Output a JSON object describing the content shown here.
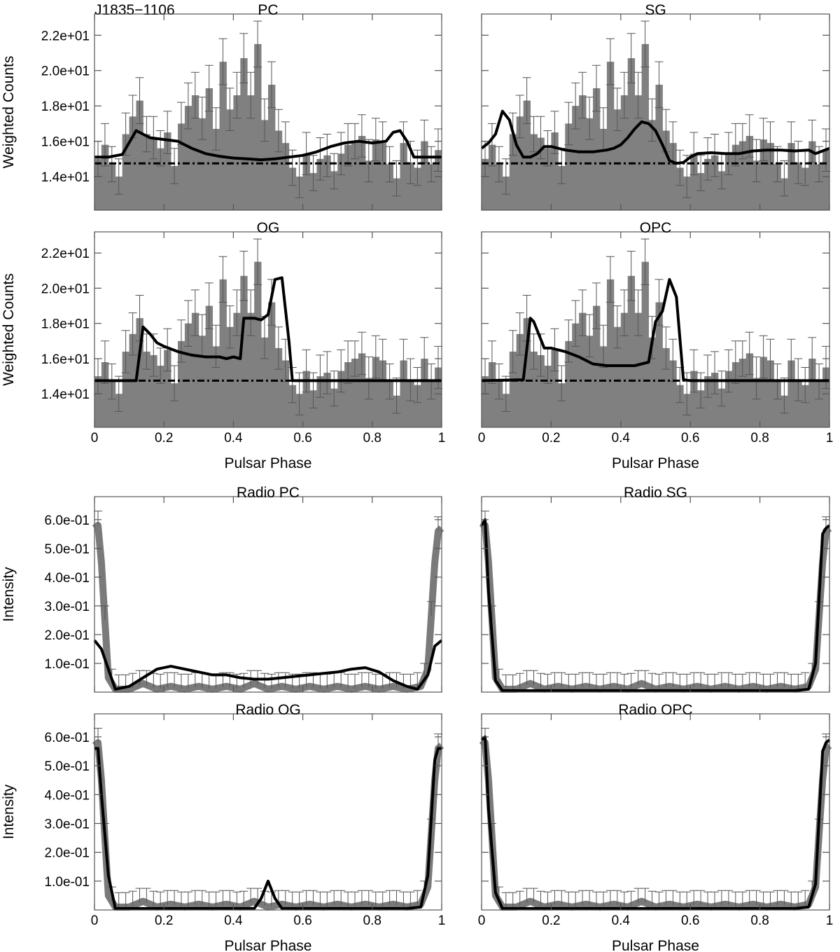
{
  "figure_label": "J1835−1106",
  "chart_data": [
    {
      "type": "bar",
      "panel": "gamma",
      "title": "PC",
      "ylabel": "Weighted Counts",
      "xlabel": "",
      "xlim": [
        0,
        1
      ],
      "ylim": [
        12.1,
        23.2
      ],
      "y_ticks": [
        14,
        16,
        18,
        20,
        22
      ],
      "y_tick_labels": [
        "1.4e+01",
        "1.6e+01",
        "1.8e+01",
        "2.0e+01",
        "2.2e+01"
      ],
      "x_ticks": [
        0,
        0.2,
        0.4,
        0.6,
        0.8,
        1
      ],
      "x_tick_labels": [],
      "background_level": 14.75,
      "observed_counts": [
        15.0,
        15.8,
        14.7,
        14.0,
        16.4,
        17.4,
        18.3,
        16.4,
        16.2,
        15.6,
        16.5,
        14.6,
        17.0,
        18.0,
        18.6,
        17.3,
        19.0,
        16.7,
        20.5,
        17.8,
        18.6,
        20.7,
        18.6,
        21.5,
        17.2,
        19.2,
        16.6,
        15.9,
        14.5,
        14.0,
        15.3,
        14.2,
        15.0,
        15.2,
        14.3,
        15.3,
        15.8,
        16.0,
        16.3,
        14.9,
        16.1,
        15.9,
        14.7,
        13.9,
        15.9,
        14.8,
        14.5,
        16.0,
        14.7,
        15.5
      ],
      "error": [
        1.0,
        1.2,
        1.0,
        1.0,
        1.2,
        1.2,
        1.3,
        1.0,
        1.2,
        1.0,
        1.2,
        1.0,
        1.2,
        1.3,
        1.3,
        1.2,
        1.3,
        1.2,
        1.3,
        1.2,
        1.3,
        1.4,
        1.3,
        1.3,
        1.2,
        1.3,
        1.2,
        1.2,
        1.0,
        1.2,
        1.2,
        1.0,
        1.2,
        1.2,
        1.0,
        1.2,
        1.2,
        1.0,
        1.2,
        1.2,
        1.2,
        1.2,
        1.0,
        1.0,
        1.2,
        1.2,
        1.0,
        1.2,
        1.0,
        1.2
      ],
      "model_x": [
        0,
        0.04,
        0.08,
        0.12,
        0.16,
        0.2,
        0.24,
        0.28,
        0.32,
        0.36,
        0.4,
        0.44,
        0.48,
        0.52,
        0.56,
        0.6,
        0.64,
        0.68,
        0.72,
        0.76,
        0.8,
        0.84,
        0.86,
        0.88,
        0.9,
        0.92,
        0.96,
        1.0
      ],
      "model_y": [
        15.1,
        15.1,
        15.25,
        16.6,
        16.2,
        16.1,
        16.0,
        15.6,
        15.3,
        15.15,
        15.05,
        15.0,
        14.95,
        15.0,
        15.1,
        15.2,
        15.4,
        15.7,
        15.9,
        16.0,
        15.9,
        16.0,
        16.5,
        16.6,
        16.0,
        15.1,
        15.1,
        15.1
      ]
    },
    {
      "type": "bar",
      "panel": "gamma",
      "title": "SG",
      "ylabel": "",
      "xlabel": "",
      "xlim": [
        0,
        1
      ],
      "ylim": [
        12.1,
        23.2
      ],
      "y_ticks": [
        14,
        16,
        18,
        20,
        22
      ],
      "y_tick_labels": [],
      "x_ticks": [
        0,
        0.2,
        0.4,
        0.6,
        0.8,
        1
      ],
      "x_tick_labels": [],
      "background_level": 14.75,
      "observed_counts": [
        15.0,
        15.8,
        14.7,
        14.0,
        16.4,
        17.4,
        18.3,
        16.4,
        16.2,
        15.6,
        16.5,
        14.6,
        17.0,
        18.0,
        18.6,
        17.3,
        19.0,
        16.7,
        20.5,
        17.8,
        18.6,
        20.7,
        18.6,
        21.5,
        17.2,
        19.2,
        16.6,
        15.9,
        14.5,
        14.0,
        15.3,
        14.2,
        15.0,
        15.2,
        14.3,
        15.3,
        15.8,
        16.0,
        16.3,
        14.9,
        16.1,
        15.9,
        14.7,
        13.9,
        15.9,
        14.8,
        14.5,
        16.0,
        14.7,
        15.5
      ],
      "error": [
        1.0,
        1.2,
        1.0,
        1.0,
        1.2,
        1.2,
        1.3,
        1.0,
        1.2,
        1.0,
        1.2,
        1.0,
        1.2,
        1.3,
        1.3,
        1.2,
        1.3,
        1.2,
        1.3,
        1.2,
        1.3,
        1.4,
        1.3,
        1.3,
        1.2,
        1.3,
        1.2,
        1.2,
        1.0,
        1.2,
        1.2,
        1.0,
        1.2,
        1.2,
        1.0,
        1.2,
        1.2,
        1.0,
        1.2,
        1.2,
        1.2,
        1.2,
        1.0,
        1.0,
        1.2,
        1.2,
        1.0,
        1.2,
        1.0,
        1.2
      ],
      "model_x": [
        0,
        0.02,
        0.04,
        0.06,
        0.08,
        0.1,
        0.12,
        0.14,
        0.16,
        0.18,
        0.2,
        0.24,
        0.28,
        0.32,
        0.36,
        0.38,
        0.4,
        0.42,
        0.44,
        0.46,
        0.48,
        0.5,
        0.52,
        0.54,
        0.56,
        0.58,
        0.6,
        0.62,
        0.66,
        0.7,
        0.74,
        0.78,
        0.82,
        0.86,
        0.9,
        0.94,
        0.96,
        1.0
      ],
      "model_y": [
        15.6,
        15.9,
        16.4,
        17.7,
        17.2,
        15.8,
        15.1,
        15.1,
        15.3,
        15.7,
        15.7,
        15.5,
        15.4,
        15.4,
        15.5,
        15.6,
        15.8,
        16.2,
        16.7,
        17.1,
        17.0,
        16.6,
        15.8,
        14.9,
        14.75,
        14.8,
        15.1,
        15.3,
        15.35,
        15.3,
        15.3,
        15.45,
        15.5,
        15.5,
        15.45,
        15.5,
        15.3,
        15.6
      ]
    },
    {
      "type": "bar",
      "panel": "gamma",
      "title": "OG",
      "ylabel": "Weighted Counts",
      "xlabel": "Pulsar Phase",
      "xlim": [
        0,
        1
      ],
      "ylim": [
        12.1,
        23.2
      ],
      "y_ticks": [
        14,
        16,
        18,
        20,
        22
      ],
      "y_tick_labels": [
        "1.4e+01",
        "1.6e+01",
        "1.8e+01",
        "2.0e+01",
        "2.2e+01"
      ],
      "x_ticks": [
        0,
        0.2,
        0.4,
        0.6,
        0.8,
        1
      ],
      "x_tick_labels": [
        "0",
        "0.2",
        "0.4",
        "0.6",
        "0.8",
        "1"
      ],
      "background_level": 14.75,
      "observed_counts": [
        15.0,
        15.8,
        14.7,
        14.0,
        16.4,
        17.4,
        18.3,
        16.4,
        16.2,
        15.6,
        16.5,
        14.6,
        17.0,
        18.0,
        18.6,
        17.3,
        19.0,
        16.7,
        20.5,
        17.8,
        18.6,
        20.7,
        18.6,
        21.5,
        17.2,
        19.2,
        16.6,
        15.9,
        14.5,
        14.0,
        15.3,
        14.2,
        15.0,
        15.2,
        14.3,
        15.3,
        15.8,
        16.0,
        16.3,
        14.9,
        16.1,
        15.9,
        14.7,
        13.9,
        15.9,
        14.8,
        14.5,
        16.0,
        14.7,
        15.5
      ],
      "error": [
        1.0,
        1.2,
        1.0,
        1.0,
        1.2,
        1.2,
        1.3,
        1.0,
        1.2,
        1.0,
        1.2,
        1.0,
        1.2,
        1.3,
        1.3,
        1.2,
        1.3,
        1.2,
        1.3,
        1.2,
        1.3,
        1.4,
        1.3,
        1.3,
        1.2,
        1.3,
        1.2,
        1.2,
        1.0,
        1.2,
        1.2,
        1.0,
        1.2,
        1.2,
        1.0,
        1.2,
        1.2,
        1.0,
        1.2,
        1.2,
        1.2,
        1.2,
        1.0,
        1.0,
        1.2,
        1.2,
        1.0,
        1.2,
        1.0,
        1.2
      ],
      "model_x": [
        0,
        0.12,
        0.14,
        0.16,
        0.18,
        0.2,
        0.24,
        0.28,
        0.32,
        0.36,
        0.38,
        0.4,
        0.42,
        0.43,
        0.46,
        0.48,
        0.5,
        0.52,
        0.54,
        0.56,
        0.57,
        0.6,
        1.0
      ],
      "model_y": [
        14.75,
        14.75,
        17.8,
        17.4,
        16.9,
        16.7,
        16.4,
        16.2,
        16.1,
        16.1,
        16.0,
        16.1,
        16.0,
        18.3,
        18.3,
        18.2,
        18.5,
        20.5,
        20.6,
        17.0,
        14.75,
        14.75,
        14.75
      ]
    },
    {
      "type": "bar",
      "panel": "gamma",
      "title": "OPC",
      "ylabel": "",
      "xlabel": "Pulsar Phase",
      "xlim": [
        0,
        1
      ],
      "ylim": [
        12.1,
        23.2
      ],
      "y_ticks": [
        14,
        16,
        18,
        20,
        22
      ],
      "y_tick_labels": [],
      "x_ticks": [
        0,
        0.2,
        0.4,
        0.6,
        0.8,
        1
      ],
      "x_tick_labels": [
        "0",
        "0.2",
        "0.4",
        "0.6",
        "0.8",
        "1"
      ],
      "background_level": 14.75,
      "observed_counts": [
        15.0,
        15.8,
        14.7,
        14.0,
        16.4,
        17.4,
        18.3,
        16.4,
        16.2,
        15.6,
        16.5,
        14.6,
        17.0,
        18.0,
        18.6,
        17.3,
        19.0,
        16.7,
        20.5,
        17.8,
        18.6,
        20.7,
        18.6,
        21.5,
        17.2,
        19.2,
        16.6,
        15.9,
        14.5,
        14.0,
        15.3,
        14.2,
        15.0,
        15.2,
        14.3,
        15.3,
        15.8,
        16.0,
        16.3,
        14.9,
        16.1,
        15.9,
        14.7,
        13.9,
        15.9,
        14.8,
        14.5,
        16.0,
        14.7,
        15.5
      ],
      "error": [
        1.0,
        1.2,
        1.0,
        1.0,
        1.2,
        1.2,
        1.3,
        1.0,
        1.2,
        1.0,
        1.2,
        1.0,
        1.2,
        1.3,
        1.3,
        1.2,
        1.3,
        1.2,
        1.3,
        1.2,
        1.3,
        1.4,
        1.3,
        1.3,
        1.2,
        1.3,
        1.2,
        1.2,
        1.0,
        1.2,
        1.2,
        1.0,
        1.2,
        1.2,
        1.0,
        1.2,
        1.2,
        1.0,
        1.2,
        1.2,
        1.2,
        1.2,
        1.0,
        1.0,
        1.2,
        1.2,
        1.0,
        1.2,
        1.0,
        1.2
      ],
      "model_x": [
        0,
        0.12,
        0.14,
        0.15,
        0.18,
        0.2,
        0.24,
        0.28,
        0.32,
        0.36,
        0.4,
        0.44,
        0.48,
        0.5,
        0.52,
        0.54,
        0.56,
        0.58,
        0.6,
        1.0
      ],
      "model_y": [
        14.75,
        14.8,
        18.3,
        18.1,
        16.6,
        16.6,
        16.4,
        16.1,
        15.7,
        15.6,
        15.6,
        15.6,
        15.8,
        18.1,
        18.7,
        20.5,
        19.5,
        14.8,
        14.75,
        14.75
      ]
    },
    {
      "type": "line",
      "panel": "radio",
      "title": "Radio PC",
      "ylabel": "Intensity",
      "xlabel": "",
      "xlim": [
        0,
        1
      ],
      "ylim": [
        0,
        0.68
      ],
      "y_ticks": [
        0.1,
        0.2,
        0.3,
        0.4,
        0.5,
        0.6
      ],
      "y_tick_labels": [
        "1.0e-01",
        "2.0e-01",
        "3.0e-01",
        "4.0e-01",
        "5.0e-01",
        "6.0e-01"
      ],
      "x_ticks": [
        0,
        0.2,
        0.4,
        0.6,
        0.8,
        1
      ],
      "x_tick_labels": [],
      "radio_x": [
        0,
        0.01,
        0.02,
        0.04,
        0.06,
        0.1,
        0.14,
        0.18,
        0.22,
        0.26,
        0.3,
        0.34,
        0.38,
        0.42,
        0.46,
        0.5,
        0.54,
        0.58,
        0.62,
        0.66,
        0.7,
        0.74,
        0.78,
        0.82,
        0.86,
        0.9,
        0.94,
        0.96,
        0.98,
        0.99,
        1.0
      ],
      "radio_y": [
        0.57,
        0.58,
        0.45,
        0.05,
        0.01,
        0.01,
        0.03,
        0.01,
        0.02,
        0.01,
        0.02,
        0.01,
        0.02,
        0.01,
        0.03,
        0.01,
        0.02,
        0.01,
        0.02,
        0.01,
        0.02,
        0.01,
        0.02,
        0.01,
        0.02,
        0.01,
        0.02,
        0.08,
        0.45,
        0.56,
        0.57
      ],
      "error": 0.05,
      "model_x": [
        0,
        0.02,
        0.04,
        0.06,
        0.1,
        0.14,
        0.18,
        0.22,
        0.26,
        0.3,
        0.34,
        0.38,
        0.42,
        0.46,
        0.5,
        0.54,
        0.58,
        0.62,
        0.66,
        0.7,
        0.74,
        0.78,
        0.82,
        0.86,
        0.9,
        0.93,
        0.96,
        0.98,
        1.0
      ],
      "model_y": [
        0.18,
        0.15,
        0.08,
        0.01,
        0.02,
        0.05,
        0.08,
        0.09,
        0.08,
        0.07,
        0.06,
        0.06,
        0.05,
        0.045,
        0.045,
        0.05,
        0.055,
        0.06,
        0.065,
        0.07,
        0.08,
        0.085,
        0.07,
        0.04,
        0.02,
        0.01,
        0.06,
        0.16,
        0.18
      ]
    },
    {
      "type": "line",
      "panel": "radio",
      "title": "Radio SG",
      "ylabel": "",
      "xlabel": "",
      "xlim": [
        0,
        1
      ],
      "ylim": [
        0,
        0.68
      ],
      "y_ticks": [
        0.1,
        0.2,
        0.3,
        0.4,
        0.5,
        0.6
      ],
      "y_tick_labels": [],
      "x_ticks": [
        0,
        0.2,
        0.4,
        0.6,
        0.8,
        1
      ],
      "x_tick_labels": [],
      "radio_x": [
        0,
        0.01,
        0.02,
        0.04,
        0.06,
        0.1,
        0.14,
        0.18,
        0.22,
        0.26,
        0.3,
        0.34,
        0.38,
        0.42,
        0.46,
        0.5,
        0.54,
        0.58,
        0.62,
        0.66,
        0.7,
        0.74,
        0.78,
        0.82,
        0.86,
        0.9,
        0.94,
        0.96,
        0.98,
        0.99,
        1.0
      ],
      "radio_y": [
        0.57,
        0.58,
        0.45,
        0.05,
        0.01,
        0.01,
        0.03,
        0.01,
        0.02,
        0.01,
        0.02,
        0.01,
        0.02,
        0.01,
        0.03,
        0.01,
        0.02,
        0.01,
        0.02,
        0.01,
        0.02,
        0.01,
        0.02,
        0.01,
        0.02,
        0.01,
        0.02,
        0.08,
        0.45,
        0.56,
        0.57
      ],
      "error": 0.05,
      "model_x": [
        0,
        0.01,
        0.02,
        0.04,
        0.06,
        0.1,
        0.5,
        0.9,
        0.94,
        0.96,
        0.98,
        0.99,
        1.0
      ],
      "model_y": [
        0.58,
        0.6,
        0.35,
        0.04,
        0.005,
        0.005,
        0.005,
        0.005,
        0.01,
        0.1,
        0.55,
        0.57,
        0.58
      ]
    },
    {
      "type": "line",
      "panel": "radio",
      "title": "Radio OG",
      "ylabel": "Intensity",
      "xlabel": "Pulsar Phase",
      "xlim": [
        0,
        1
      ],
      "ylim": [
        0,
        0.68
      ],
      "y_ticks": [
        0.1,
        0.2,
        0.3,
        0.4,
        0.5,
        0.6
      ],
      "y_tick_labels": [
        "1.0e-01",
        "2.0e-01",
        "3.0e-01",
        "4.0e-01",
        "5.0e-01",
        "6.0e-01"
      ],
      "x_ticks": [
        0,
        0.2,
        0.4,
        0.6,
        0.8,
        1
      ],
      "x_tick_labels": [
        "0",
        "0.2",
        "0.4",
        "0.6",
        "0.8",
        "1"
      ],
      "radio_x": [
        0,
        0.01,
        0.02,
        0.04,
        0.06,
        0.1,
        0.14,
        0.18,
        0.22,
        0.26,
        0.3,
        0.34,
        0.38,
        0.42,
        0.46,
        0.5,
        0.54,
        0.58,
        0.62,
        0.66,
        0.7,
        0.74,
        0.78,
        0.82,
        0.86,
        0.9,
        0.94,
        0.96,
        0.98,
        0.99,
        1.0
      ],
      "radio_y": [
        0.57,
        0.58,
        0.45,
        0.05,
        0.01,
        0.01,
        0.03,
        0.01,
        0.02,
        0.01,
        0.02,
        0.01,
        0.02,
        0.01,
        0.03,
        0.01,
        0.02,
        0.01,
        0.02,
        0.01,
        0.02,
        0.01,
        0.02,
        0.01,
        0.02,
        0.01,
        0.02,
        0.08,
        0.45,
        0.56,
        0.57
      ],
      "error": 0.05,
      "model_x": [
        0,
        0.01,
        0.02,
        0.04,
        0.06,
        0.1,
        0.46,
        0.48,
        0.5,
        0.52,
        0.54,
        0.56,
        0.9,
        0.94,
        0.96,
        0.98,
        0.99,
        1.0
      ],
      "model_y": [
        0.56,
        0.56,
        0.4,
        0.12,
        0.005,
        0.005,
        0.005,
        0.04,
        0.1,
        0.04,
        0.005,
        0.005,
        0.005,
        0.01,
        0.12,
        0.52,
        0.56,
        0.56
      ]
    },
    {
      "type": "line",
      "panel": "radio",
      "title": "Radio OPC",
      "ylabel": "",
      "xlabel": "Pulsar Phase",
      "xlim": [
        0,
        1
      ],
      "ylim": [
        0,
        0.68
      ],
      "y_ticks": [
        0.1,
        0.2,
        0.3,
        0.4,
        0.5,
        0.6
      ],
      "y_tick_labels": [],
      "x_ticks": [
        0,
        0.2,
        0.4,
        0.6,
        0.8,
        1
      ],
      "x_tick_labels": [
        "0",
        "0.2",
        "0.4",
        "0.6",
        "0.8",
        "1"
      ],
      "radio_x": [
        0,
        0.01,
        0.02,
        0.04,
        0.06,
        0.1,
        0.14,
        0.18,
        0.22,
        0.26,
        0.3,
        0.34,
        0.38,
        0.42,
        0.46,
        0.5,
        0.54,
        0.58,
        0.62,
        0.66,
        0.7,
        0.74,
        0.78,
        0.82,
        0.86,
        0.9,
        0.94,
        0.96,
        0.98,
        0.99,
        1.0
      ],
      "radio_y": [
        0.57,
        0.58,
        0.45,
        0.05,
        0.01,
        0.01,
        0.03,
        0.01,
        0.02,
        0.01,
        0.02,
        0.01,
        0.02,
        0.01,
        0.03,
        0.01,
        0.02,
        0.01,
        0.02,
        0.01,
        0.02,
        0.01,
        0.02,
        0.01,
        0.02,
        0.01,
        0.02,
        0.08,
        0.45,
        0.56,
        0.57
      ],
      "error": 0.05,
      "model_x": [
        0,
        0.01,
        0.02,
        0.04,
        0.06,
        0.1,
        0.5,
        0.9,
        0.94,
        0.96,
        0.98,
        0.99,
        1.0
      ],
      "model_y": [
        0.59,
        0.6,
        0.35,
        0.06,
        0.005,
        0.005,
        0.005,
        0.005,
        0.01,
        0.09,
        0.55,
        0.58,
        0.59
      ]
    }
  ]
}
